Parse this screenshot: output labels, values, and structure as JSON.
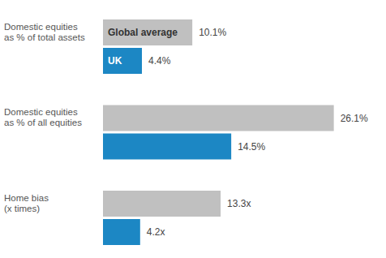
{
  "chart_data": {
    "type": "bar",
    "orientation": "horizontal",
    "categories": [
      "Domestic equities\nas % of total assets",
      "Domestic equities\nas % of all equities",
      "Home bias\n(x times)"
    ],
    "series": [
      {
        "name": "Global average",
        "color": "#c0c0c0",
        "values": [
          10.1,
          26.1,
          13.3
        ],
        "value_labels": [
          "10.1%",
          "26.1%",
          "13.3x"
        ]
      },
      {
        "name": "UK",
        "color": "#1c87c4",
        "values": [
          4.4,
          14.5,
          4.2
        ],
        "value_labels": [
          "4.4%",
          "14.5%",
          "4.2x"
        ]
      }
    ],
    "xlim": [
      0,
      32
    ],
    "tick_labels": false,
    "grid": false,
    "data_labels": true
  }
}
